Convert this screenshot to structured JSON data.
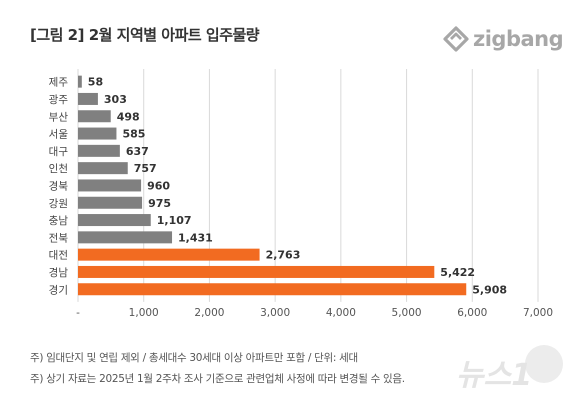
{
  "header": {
    "title": "[그림 2] 2월 지역별 아파트 입주물량",
    "brand": "zigbang"
  },
  "notes": [
    "주) 임대단지 및 연립 제외 / 총세대수 30세대 이상 아파트만 포함 / 단위: 세대",
    "주) 상기 자료는 2025년 1월 2주차 조사 기준으로 관련업체 사정에 따라 변경될 수 있음."
  ],
  "watermark": "뉴스1",
  "colors": {
    "gray": "#808080",
    "orange": "#f26b21",
    "grid": "#d9d9d9",
    "brand": "#a7a7a7"
  },
  "chart_data": {
    "type": "bar",
    "orientation": "horizontal",
    "title": "[그림 2] 2월 지역별 아파트 입주물량",
    "xlabel": "",
    "ylabel": "",
    "xlim": [
      0,
      7000
    ],
    "x_ticks": [
      "-",
      "1,000",
      "2,000",
      "3,000",
      "4,000",
      "5,000",
      "6,000",
      "7,000"
    ],
    "grid": "vertical",
    "legend": "none",
    "categories": [
      "제주",
      "광주",
      "부산",
      "서울",
      "대구",
      "인천",
      "경북",
      "강원",
      "충남",
      "전북",
      "대전",
      "경남",
      "경기"
    ],
    "values": [
      58,
      303,
      498,
      585,
      637,
      757,
      960,
      975,
      1107,
      1431,
      2763,
      5422,
      5908
    ],
    "value_labels": [
      "58",
      "303",
      "498",
      "585",
      "637",
      "757",
      "960",
      "975",
      "1,107",
      "1,431",
      "2,763",
      "5,422",
      "5,908"
    ],
    "highlighted": [
      "대전",
      "경남",
      "경기"
    ]
  }
}
